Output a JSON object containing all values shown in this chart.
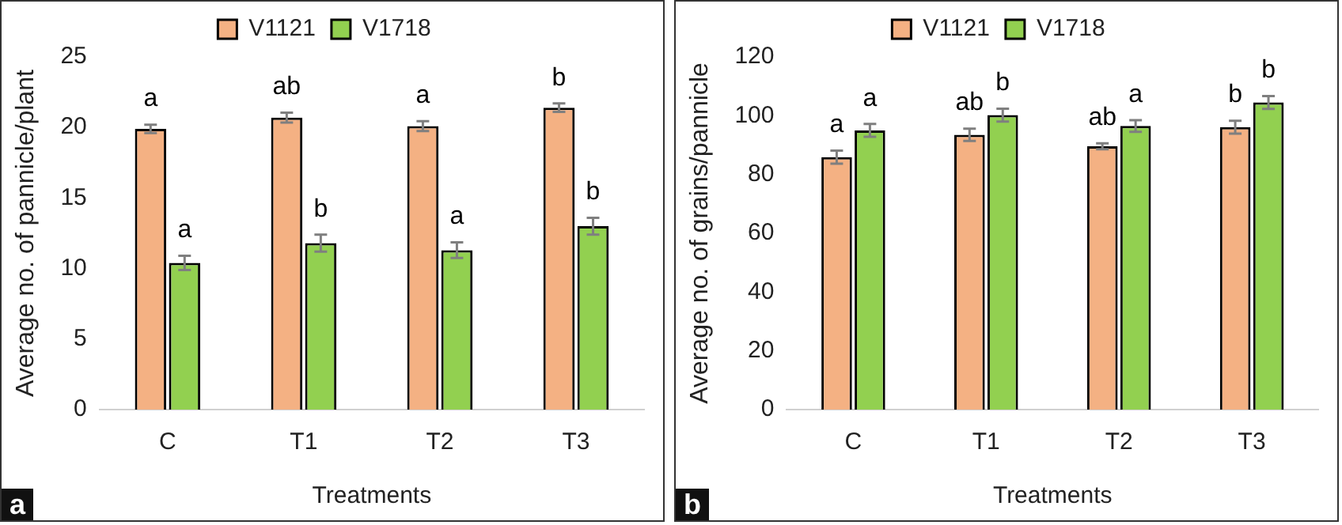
{
  "chart_data": [
    {
      "type": "bar",
      "categories": [
        "C",
        "T1",
        "T2",
        "T3"
      ],
      "xlabel": "Treatments",
      "ylabel": "Average no. of pannicle/plant",
      "ylim": [
        0,
        25
      ],
      "yticks": [
        0,
        5,
        10,
        15,
        20,
        25
      ],
      "legend": "top",
      "annotations": [
        "a"
      ],
      "series": [
        {
          "name": "V1121",
          "color": "#f4b183",
          "values": [
            19.9,
            20.7,
            20.1,
            21.4
          ],
          "errors": [
            0.3,
            0.35,
            0.35,
            0.3
          ],
          "value_labels": [
            "a",
            "ab",
            "a",
            "b"
          ]
        },
        {
          "name": "V1718",
          "color": "#92d050",
          "values": [
            10.4,
            11.8,
            11.3,
            13.0
          ],
          "errors": [
            0.5,
            0.6,
            0.55,
            0.6
          ],
          "value_labels": [
            "a",
            "b",
            "a",
            "b"
          ]
        }
      ]
    },
    {
      "type": "bar",
      "categories": [
        "C",
        "T1",
        "T2",
        "T3"
      ],
      "xlabel": "Treatments",
      "ylabel": "Average no. of grains/pannicle",
      "ylim": [
        0,
        120
      ],
      "yticks": [
        0,
        20,
        40,
        60,
        80,
        100,
        120
      ],
      "legend": "top",
      "annotations": [
        "b"
      ],
      "series": [
        {
          "name": "V1121",
          "color": "#f4b183",
          "values": [
            85.9,
            93.5,
            89.6,
            96.1
          ],
          "errors": [
            2.2,
            2.1,
            1,
            2.2
          ],
          "value_labels": [
            "a",
            "ab",
            "ab",
            "b"
          ]
        },
        {
          "name": "V1718",
          "color": "#92d050",
          "values": [
            95.0,
            100.2,
            96.5,
            104.5
          ],
          "errors": [
            2.2,
            2.2,
            2,
            2.2
          ],
          "value_labels": [
            "a",
            "b",
            "a",
            "b"
          ]
        }
      ]
    }
  ]
}
